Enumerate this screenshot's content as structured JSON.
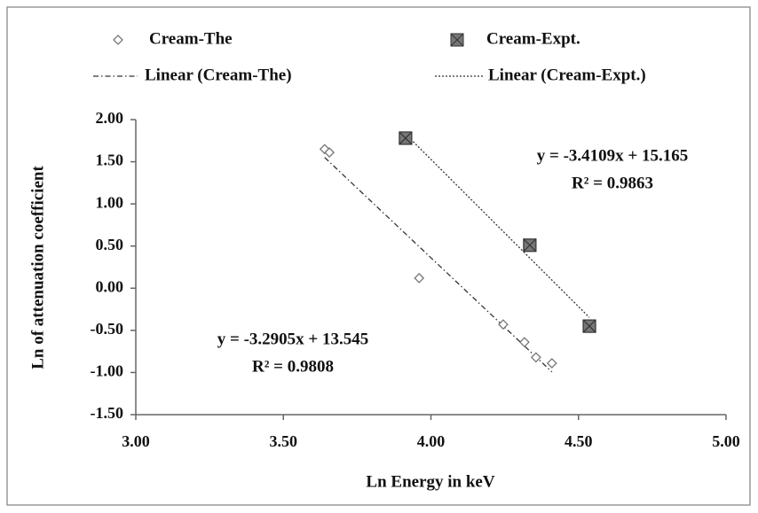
{
  "chart_data": {
    "type": "scatter",
    "x_label": "Ln Energy in keV",
    "y_label": "Ln of attenuation coefficient",
    "xlim": [
      3.0,
      5.0
    ],
    "ylim": [
      -1.5,
      2.0
    ],
    "xticks": [
      {
        "value": 3.0,
        "label": "3.00"
      },
      {
        "value": 3.5,
        "label": "3.50"
      },
      {
        "value": 4.0,
        "label": "4.00"
      },
      {
        "value": 4.5,
        "label": "4.50"
      },
      {
        "value": 5.0,
        "label": "5.00"
      }
    ],
    "yticks": [
      {
        "value": 2.0,
        "label": "2.00"
      },
      {
        "value": 1.5,
        "label": "1.50"
      },
      {
        "value": 1.0,
        "label": "1.00"
      },
      {
        "value": 0.5,
        "label": "0.50"
      },
      {
        "value": 0.0,
        "label": "0.00"
      },
      {
        "value": -0.5,
        "label": "-0.50"
      },
      {
        "value": -1.0,
        "label": "-1.00"
      },
      {
        "value": -1.5,
        "label": "-1.50"
      }
    ],
    "grid": false,
    "series": [
      {
        "name": "Cream-The",
        "marker": "diamond",
        "color": "#777777",
        "x": [
          3.64,
          3.656,
          3.96,
          4.245,
          4.317,
          4.356,
          4.41
        ],
        "values": [
          1.65,
          1.61,
          0.12,
          -0.43,
          -0.64,
          -0.82,
          -0.89
        ]
      },
      {
        "name": "Cream-Expt.",
        "marker": "square",
        "color": "#777777",
        "x": [
          3.914,
          4.335,
          4.537
        ],
        "values": [
          1.78,
          0.51,
          -0.45
        ]
      }
    ],
    "trendlines": [
      {
        "name": "Linear (Cream-The)",
        "series": 0,
        "style": "dashdot"
      },
      {
        "name": "Linear (Cream-Expt.)",
        "series": 1,
        "style": "dotted"
      }
    ],
    "annotations": [
      [
        "y = -3.4109x + 15.165",
        "R² = 0.9863"
      ],
      [
        "y = -3.2905x + 13.545",
        "R² = 0.9808"
      ]
    ]
  }
}
